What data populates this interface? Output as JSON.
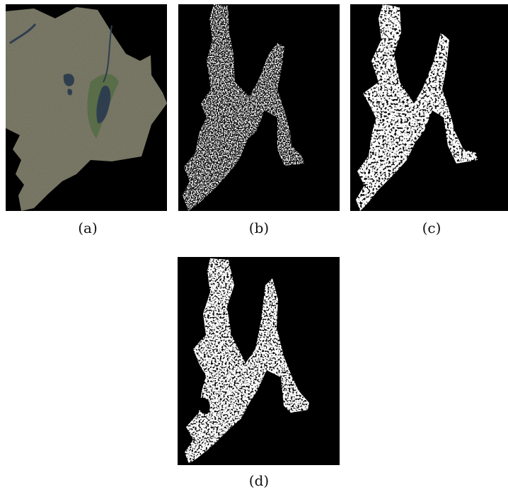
{
  "figure": {
    "panels": [
      {
        "id": "a",
        "caption": "(a)",
        "content": "satellite-image"
      },
      {
        "id": "b",
        "caption": "(b)",
        "content": "binary-mask"
      },
      {
        "id": "c",
        "caption": "(c)",
        "content": "binary-mask"
      },
      {
        "id": "d",
        "caption": "(d)",
        "content": "binary-mask"
      }
    ],
    "colors": {
      "background": "#000000",
      "land": "#6b6955",
      "vegetation": "#4f6b3f",
      "water": "#2f3e4f",
      "mask": "#ffffff"
    }
  }
}
